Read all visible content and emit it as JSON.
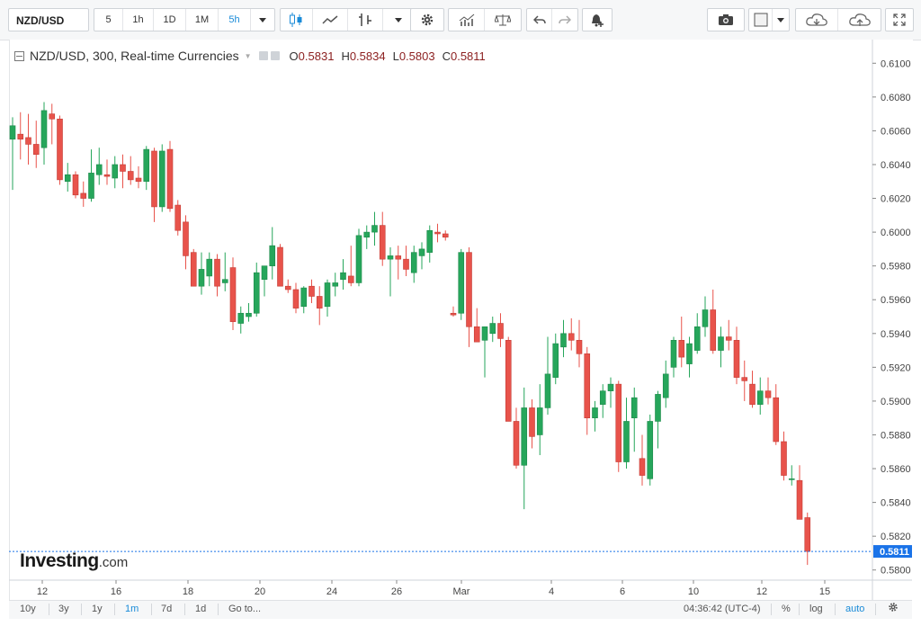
{
  "toolbar": {
    "symbol": "NZD/USD",
    "intervals": [
      "5",
      "1h",
      "1D",
      "1M",
      "5h"
    ],
    "active_interval": "5h"
  },
  "legend": {
    "title": "NZD/USD, 300, Real-time Currencies",
    "open_key": "O",
    "open": "0.5831",
    "high_key": "H",
    "high": "0.5834",
    "low_key": "L",
    "low": "0.5803",
    "close_key": "C",
    "close": "0.5811"
  },
  "branding": {
    "logo": "Investing",
    "logo_suffix": ".com"
  },
  "bottombar": {
    "ranges": [
      "10y",
      "3y",
      "1y",
      "1m",
      "7d",
      "1d",
      "Go to..."
    ],
    "active_range": "1m",
    "clock": "04:36:42 (UTC-4)",
    "percent": "%",
    "log": "log",
    "auto": "auto"
  },
  "colors": {
    "up": "#26a65b",
    "down": "#e8534b",
    "last_price": "#1a73e8",
    "accent": "#1a8bd8"
  },
  "icons": [
    "candles-icon",
    "line-chart-icon",
    "bars-icon",
    "gear-icon",
    "indicators-icon",
    "compare-icon",
    "undo-icon",
    "redo-icon",
    "alert-icon",
    "camera-icon",
    "square-icon",
    "cloud-save-icon",
    "cloud-load-icon",
    "fullscreen-icon"
  ],
  "chart_data": {
    "type": "candlestick",
    "symbol": "NZD/USD",
    "interval_minutes": 300,
    "y_ticks": [
      0.58,
      0.582,
      0.584,
      0.586,
      0.588,
      0.59,
      0.592,
      0.594,
      0.596,
      0.598,
      0.6,
      0.602,
      0.604,
      0.606,
      0.608,
      0.61
    ],
    "ylim": [
      0.5794,
      0.6114
    ],
    "last_price": "0.5811",
    "x_tick_labels": [
      "12",
      "16",
      "18",
      "20",
      "24",
      "26",
      "Mar",
      "4",
      "6",
      "10",
      "12",
      "15"
    ],
    "candles": [
      {
        "o": 0.6055,
        "h": 0.6068,
        "l": 0.6025,
        "c": 0.6063
      },
      {
        "o": 0.6058,
        "h": 0.6071,
        "l": 0.6043,
        "c": 0.6055
      },
      {
        "o": 0.6056,
        "h": 0.607,
        "l": 0.604,
        "c": 0.6052
      },
      {
        "o": 0.6052,
        "h": 0.6066,
        "l": 0.6038,
        "c": 0.6046
      },
      {
        "o": 0.605,
        "h": 0.6077,
        "l": 0.604,
        "c": 0.6072
      },
      {
        "o": 0.607,
        "h": 0.6076,
        "l": 0.6052,
        "c": 0.6067
      },
      {
        "o": 0.6067,
        "h": 0.6069,
        "l": 0.6028,
        "c": 0.6031
      },
      {
        "o": 0.603,
        "h": 0.6041,
        "l": 0.6024,
        "c": 0.6034
      },
      {
        "o": 0.6034,
        "h": 0.6036,
        "l": 0.602,
        "c": 0.6022
      },
      {
        "o": 0.6023,
        "h": 0.603,
        "l": 0.6015,
        "c": 0.602
      },
      {
        "o": 0.602,
        "h": 0.6049,
        "l": 0.6018,
        "c": 0.6035
      },
      {
        "o": 0.6034,
        "h": 0.605,
        "l": 0.6028,
        "c": 0.604
      },
      {
        "o": 0.6034,
        "h": 0.6043,
        "l": 0.6028,
        "c": 0.6033
      },
      {
        "o": 0.6032,
        "h": 0.6045,
        "l": 0.6026,
        "c": 0.604
      },
      {
        "o": 0.604,
        "h": 0.6046,
        "l": 0.6026,
        "c": 0.6036
      },
      {
        "o": 0.6036,
        "h": 0.6045,
        "l": 0.6028,
        "c": 0.6031
      },
      {
        "o": 0.6032,
        "h": 0.6039,
        "l": 0.6026,
        "c": 0.603
      },
      {
        "o": 0.603,
        "h": 0.6051,
        "l": 0.6025,
        "c": 0.6049
      },
      {
        "o": 0.6048,
        "h": 0.605,
        "l": 0.6006,
        "c": 0.6015
      },
      {
        "o": 0.6015,
        "h": 0.6052,
        "l": 0.6012,
        "c": 0.6048
      },
      {
        "o": 0.6049,
        "h": 0.6054,
        "l": 0.6012,
        "c": 0.6014
      },
      {
        "o": 0.6016,
        "h": 0.6019,
        "l": 0.5998,
        "c": 0.6001
      },
      {
        "o": 0.6006,
        "h": 0.601,
        "l": 0.5978,
        "c": 0.5986
      },
      {
        "o": 0.5988,
        "h": 0.599,
        "l": 0.5968,
        "c": 0.5968
      },
      {
        "o": 0.5968,
        "h": 0.5988,
        "l": 0.5963,
        "c": 0.5978
      },
      {
        "o": 0.5974,
        "h": 0.5988,
        "l": 0.5968,
        "c": 0.5984
      },
      {
        "o": 0.5984,
        "h": 0.5987,
        "l": 0.5962,
        "c": 0.5968
      },
      {
        "o": 0.597,
        "h": 0.5988,
        "l": 0.5965,
        "c": 0.5972
      },
      {
        "o": 0.5979,
        "h": 0.5985,
        "l": 0.5942,
        "c": 0.5947
      },
      {
        "o": 0.5946,
        "h": 0.5956,
        "l": 0.594,
        "c": 0.5952
      },
      {
        "o": 0.595,
        "h": 0.5958,
        "l": 0.5947,
        "c": 0.5952
      },
      {
        "o": 0.5952,
        "h": 0.5982,
        "l": 0.595,
        "c": 0.5976
      },
      {
        "o": 0.5972,
        "h": 0.5978,
        "l": 0.5962,
        "c": 0.598
      },
      {
        "o": 0.598,
        "h": 0.6003,
        "l": 0.5972,
        "c": 0.5992
      },
      {
        "o": 0.5991,
        "h": 0.5993,
        "l": 0.5968,
        "c": 0.5968
      },
      {
        "o": 0.5968,
        "h": 0.5972,
        "l": 0.5964,
        "c": 0.5966
      },
      {
        "o": 0.5966,
        "h": 0.597,
        "l": 0.5952,
        "c": 0.5955
      },
      {
        "o": 0.5956,
        "h": 0.5968,
        "l": 0.5952,
        "c": 0.5967
      },
      {
        "o": 0.5968,
        "h": 0.5972,
        "l": 0.5958,
        "c": 0.5962
      },
      {
        "o": 0.5962,
        "h": 0.5968,
        "l": 0.5945,
        "c": 0.5955
      },
      {
        "o": 0.5956,
        "h": 0.5972,
        "l": 0.595,
        "c": 0.597
      },
      {
        "o": 0.5968,
        "h": 0.5976,
        "l": 0.5962,
        "c": 0.597
      },
      {
        "o": 0.5972,
        "h": 0.5984,
        "l": 0.5966,
        "c": 0.5976
      },
      {
        "o": 0.5974,
        "h": 0.5992,
        "l": 0.5968,
        "c": 0.597
      },
      {
        "o": 0.597,
        "h": 0.6002,
        "l": 0.5968,
        "c": 0.5998
      },
      {
        "o": 0.5997,
        "h": 0.6004,
        "l": 0.599,
        "c": 0.6
      },
      {
        "o": 0.6,
        "h": 0.6012,
        "l": 0.5992,
        "c": 0.6004
      },
      {
        "o": 0.6004,
        "h": 0.6012,
        "l": 0.598,
        "c": 0.5984
      },
      {
        "o": 0.5984,
        "h": 0.5991,
        "l": 0.5962,
        "c": 0.5986
      },
      {
        "o": 0.5986,
        "h": 0.5992,
        "l": 0.5972,
        "c": 0.5984
      },
      {
        "o": 0.5984,
        "h": 0.5992,
        "l": 0.5974,
        "c": 0.5978
      },
      {
        "o": 0.5976,
        "h": 0.5992,
        "l": 0.597,
        "c": 0.5988
      },
      {
        "o": 0.5986,
        "h": 0.5994,
        "l": 0.5978,
        "c": 0.599
      },
      {
        "o": 0.5988,
        "h": 0.6004,
        "l": 0.5982,
        "c": 0.6001
      },
      {
        "o": 0.6,
        "h": 0.6005,
        "l": 0.5994,
        "c": 0.5999
      },
      {
        "o": 0.5999,
        "h": 0.6001,
        "l": 0.5995,
        "c": 0.5997
      },
      {
        "o": 0.5952,
        "h": 0.5956,
        "l": 0.595,
        "c": 0.5951
      },
      {
        "o": 0.5952,
        "h": 0.599,
        "l": 0.5948,
        "c": 0.5988
      },
      {
        "o": 0.5988,
        "h": 0.5991,
        "l": 0.5932,
        "c": 0.5944
      },
      {
        "o": 0.5944,
        "h": 0.5955,
        "l": 0.5935,
        "c": 0.5935
      },
      {
        "o": 0.5936,
        "h": 0.5944,
        "l": 0.5914,
        "c": 0.5944
      },
      {
        "o": 0.594,
        "h": 0.595,
        "l": 0.5935,
        "c": 0.5946
      },
      {
        "o": 0.5946,
        "h": 0.5952,
        "l": 0.5932,
        "c": 0.5937
      },
      {
        "o": 0.5936,
        "h": 0.5938,
        "l": 0.5888,
        "c": 0.5888
      },
      {
        "o": 0.5888,
        "h": 0.5896,
        "l": 0.586,
        "c": 0.5862
      },
      {
        "o": 0.5862,
        "h": 0.5908,
        "l": 0.5836,
        "c": 0.5896
      },
      {
        "o": 0.5896,
        "h": 0.5901,
        "l": 0.5872,
        "c": 0.5879
      },
      {
        "o": 0.588,
        "h": 0.591,
        "l": 0.5868,
        "c": 0.5896
      },
      {
        "o": 0.5896,
        "h": 0.5938,
        "l": 0.5892,
        "c": 0.5916
      },
      {
        "o": 0.5914,
        "h": 0.594,
        "l": 0.591,
        "c": 0.5934
      },
      {
        "o": 0.5932,
        "h": 0.5948,
        "l": 0.5926,
        "c": 0.594
      },
      {
        "o": 0.594,
        "h": 0.5949,
        "l": 0.593,
        "c": 0.5936
      },
      {
        "o": 0.5936,
        "h": 0.5948,
        "l": 0.592,
        "c": 0.5928
      },
      {
        "o": 0.5928,
        "h": 0.5932,
        "l": 0.588,
        "c": 0.589
      },
      {
        "o": 0.589,
        "h": 0.59,
        "l": 0.5882,
        "c": 0.5896
      },
      {
        "o": 0.5898,
        "h": 0.591,
        "l": 0.589,
        "c": 0.5906
      },
      {
        "o": 0.5906,
        "h": 0.5914,
        "l": 0.5896,
        "c": 0.591
      },
      {
        "o": 0.591,
        "h": 0.5912,
        "l": 0.5858,
        "c": 0.5864
      },
      {
        "o": 0.5864,
        "h": 0.5902,
        "l": 0.586,
        "c": 0.5888
      },
      {
        "o": 0.589,
        "h": 0.5908,
        "l": 0.587,
        "c": 0.5902
      },
      {
        "o": 0.5866,
        "h": 0.588,
        "l": 0.585,
        "c": 0.5856
      },
      {
        "o": 0.5854,
        "h": 0.5892,
        "l": 0.585,
        "c": 0.5888
      },
      {
        "o": 0.5888,
        "h": 0.5906,
        "l": 0.5872,
        "c": 0.5904
      },
      {
        "o": 0.5902,
        "h": 0.5924,
        "l": 0.5896,
        "c": 0.5916
      },
      {
        "o": 0.592,
        "h": 0.5938,
        "l": 0.5914,
        "c": 0.5936
      },
      {
        "o": 0.5936,
        "h": 0.595,
        "l": 0.592,
        "c": 0.5926
      },
      {
        "o": 0.5922,
        "h": 0.5938,
        "l": 0.5914,
        "c": 0.5934
      },
      {
        "o": 0.593,
        "h": 0.5952,
        "l": 0.5928,
        "c": 0.5944
      },
      {
        "o": 0.5944,
        "h": 0.5962,
        "l": 0.5938,
        "c": 0.5954
      },
      {
        "o": 0.5954,
        "h": 0.5966,
        "l": 0.5928,
        "c": 0.593
      },
      {
        "o": 0.593,
        "h": 0.5944,
        "l": 0.592,
        "c": 0.5938
      },
      {
        "o": 0.5938,
        "h": 0.5948,
        "l": 0.593,
        "c": 0.5936
      },
      {
        "o": 0.5936,
        "h": 0.5944,
        "l": 0.591,
        "c": 0.5914
      },
      {
        "o": 0.5914,
        "h": 0.5924,
        "l": 0.59,
        "c": 0.5912
      },
      {
        "o": 0.591,
        "h": 0.5918,
        "l": 0.5896,
        "c": 0.5898
      },
      {
        "o": 0.5898,
        "h": 0.5914,
        "l": 0.5892,
        "c": 0.5906
      },
      {
        "o": 0.5906,
        "h": 0.5914,
        "l": 0.5898,
        "c": 0.5902
      },
      {
        "o": 0.5902,
        "h": 0.591,
        "l": 0.5874,
        "c": 0.5876
      },
      {
        "o": 0.5876,
        "h": 0.5882,
        "l": 0.5853,
        "c": 0.5856
      },
      {
        "o": 0.5854,
        "h": 0.5862,
        "l": 0.585,
        "c": 0.5854
      },
      {
        "o": 0.5853,
        "h": 0.5862,
        "l": 0.583,
        "c": 0.583
      },
      {
        "o": 0.5831,
        "h": 0.5834,
        "l": 0.5803,
        "c": 0.5811
      }
    ]
  }
}
